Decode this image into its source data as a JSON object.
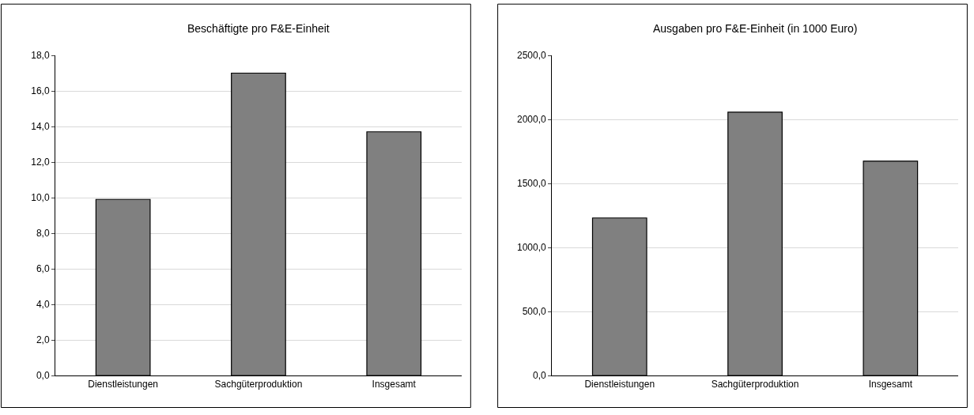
{
  "chart_data": [
    {
      "type": "bar",
      "title": "Beschäftigte pro F&E-Einheit",
      "categories": [
        "Dienstleistungen",
        "Sachgüterproduktion",
        "Insgesamt"
      ],
      "values": [
        9.9,
        17.0,
        13.7
      ],
      "color": "#808080",
      "ylim": [
        0,
        18
      ],
      "yticks": [
        {
          "value": 0,
          "label": "0,0"
        },
        {
          "value": 2,
          "label": "2,0"
        },
        {
          "value": 4,
          "label": "4,0"
        },
        {
          "value": 6,
          "label": "6,0"
        },
        {
          "value": 8,
          "label": "8,0"
        },
        {
          "value": 10,
          "label": "10,0"
        },
        {
          "value": 12,
          "label": "12,0"
        },
        {
          "value": 14,
          "label": "14,0"
        },
        {
          "value": 16,
          "label": "16,0"
        },
        {
          "value": 18,
          "label": "18,0"
        }
      ],
      "grid": "y",
      "legend": false
    },
    {
      "type": "bar",
      "title": "Ausgaben pro F&E-Einheit (in 1000 Euro)",
      "categories": [
        "Dienstleistungen",
        "Sachgüterproduktion",
        "Insgesamt"
      ],
      "values": [
        1230,
        2056,
        1674
      ],
      "color": "#808080",
      "ylim": [
        0,
        2500
      ],
      "yticks": [
        {
          "value": 0,
          "label": "0,0"
        },
        {
          "value": 500,
          "label": "500,0"
        },
        {
          "value": 1000,
          "label": "1000,0"
        },
        {
          "value": 1500,
          "label": "1500,0"
        },
        {
          "value": 2000,
          "label": "2000,0"
        },
        {
          "value": 2500,
          "label": "2500,0"
        }
      ],
      "grid": "y",
      "legend": false
    }
  ]
}
